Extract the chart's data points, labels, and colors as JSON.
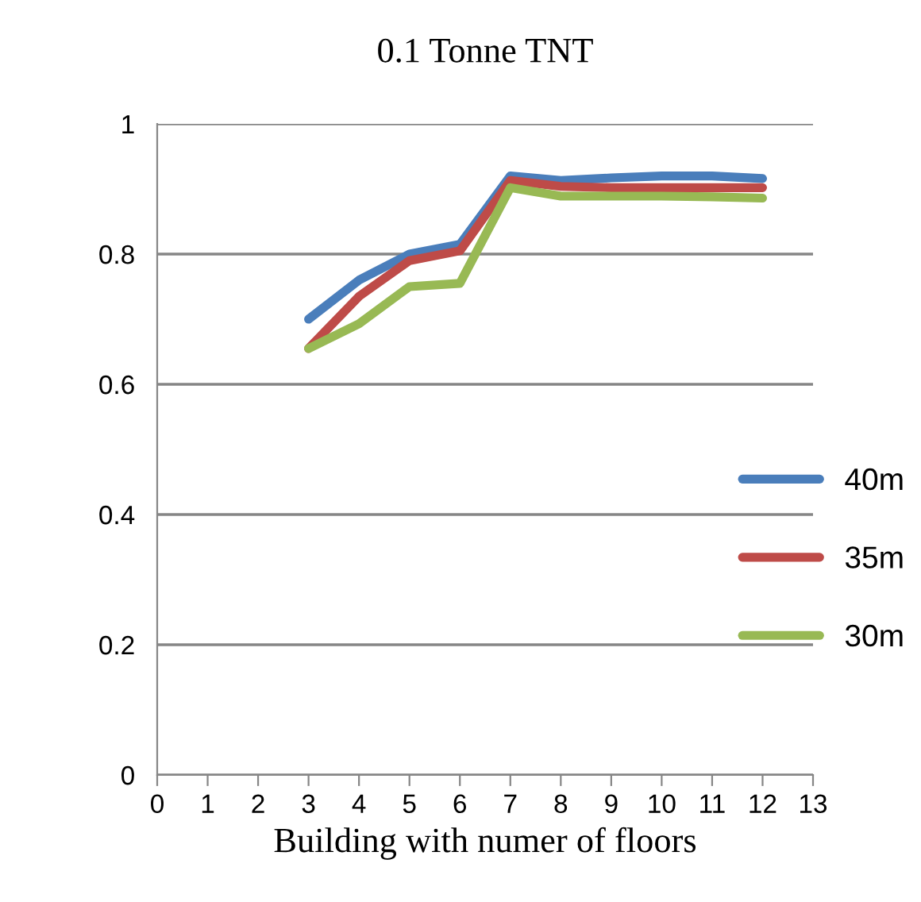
{
  "chart_data": {
    "type": "line",
    "title": "0.1 Tonne TNT",
    "xlabel": "Building with numer of floors",
    "x": [
      3,
      4,
      5,
      6,
      7,
      8,
      9,
      10,
      11,
      12
    ],
    "series": [
      {
        "name": "40m",
        "color": "#4a7ebb",
        "values": [
          0.7,
          0.76,
          0.8,
          0.815,
          0.92,
          0.913,
          0.917,
          0.92,
          0.92,
          0.916
        ]
      },
      {
        "name": "35m",
        "color": "#be4b48",
        "values": [
          0.655,
          0.735,
          0.79,
          0.805,
          0.913,
          0.904,
          0.902,
          0.902,
          0.902,
          0.902
        ]
      },
      {
        "name": "30m",
        "color": "#98b954",
        "values": [
          0.655,
          0.693,
          0.75,
          0.755,
          0.902,
          0.889,
          0.889,
          0.889,
          0.888,
          0.886
        ]
      }
    ],
    "xlim": [
      0,
      13
    ],
    "xticks": [
      0,
      1,
      2,
      3,
      4,
      5,
      6,
      7,
      8,
      9,
      10,
      11,
      12,
      13
    ],
    "ylim": [
      0,
      1
    ],
    "yticks": [
      0,
      0.2,
      0.4,
      0.6,
      0.8,
      1
    ],
    "grid": "y",
    "legend": "right",
    "marker": "none",
    "line_style": "solid"
  }
}
